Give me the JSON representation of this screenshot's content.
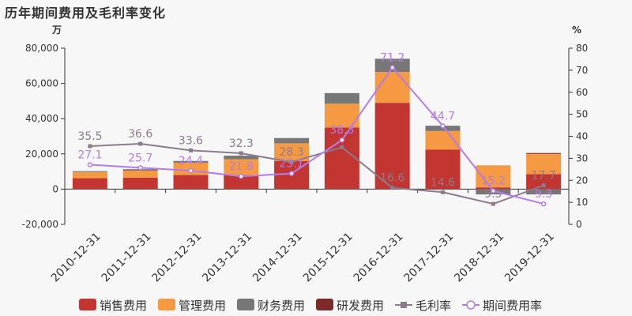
{
  "title": "历年期间费用及毛利率变化",
  "units": {
    "left": "万",
    "right": "%"
  },
  "chart_data": {
    "type": "bar",
    "stacked": true,
    "categories": [
      "2010-12-31",
      "2011-12-31",
      "2012-12-31",
      "2013-12-31",
      "2014-12-31",
      "2015-12-31",
      "2016-12-31",
      "2017-12-31",
      "2018-12-31",
      "2019-12-31"
    ],
    "left_axis": {
      "min": -20000,
      "max": 80000,
      "ticks": [
        -20000,
        0,
        20000,
        40000,
        60000,
        80000
      ],
      "tick_labels": [
        "-20,000",
        "0",
        "20,000",
        "40,000",
        "60,000",
        "80,000"
      ]
    },
    "right_axis": {
      "min": 0,
      "max": 80,
      "ticks": [
        0,
        10,
        20,
        30,
        40,
        50,
        60,
        70,
        80
      ]
    },
    "bar_series": [
      {
        "name": "销售费用",
        "color": "#c23531",
        "values": [
          6200,
          6500,
          8000,
          8000,
          16000,
          35000,
          49000,
          22500,
          1000,
          8500
        ]
      },
      {
        "name": "管理费用",
        "color": "#f59a42",
        "values": [
          3500,
          4000,
          7000,
          9000,
          10000,
          13500,
          17500,
          10500,
          12500,
          11500
        ]
      },
      {
        "name": "财务费用",
        "color": "#777777",
        "values": [
          500,
          800,
          1000,
          2000,
          3000,
          6000,
          7500,
          3000,
          -3000,
          -3000
        ]
      },
      {
        "name": "研发费用",
        "color": "#7d2a2a",
        "values": [
          0,
          0,
          0,
          0,
          0,
          0,
          0,
          0,
          0,
          500
        ]
      }
    ],
    "line_series": [
      {
        "name": "毛利率",
        "color": "#8c7b8c",
        "marker": "square",
        "values": [
          35.5,
          36.6,
          33.6,
          32.3,
          28.3,
          35.0,
          16.6,
          14.6,
          9.3,
          17.7
        ],
        "labels": [
          "35.5",
          "36.6",
          "33.6",
          "32.3",
          "28.3",
          "",
          "16.6",
          "14.6",
          "9.3",
          "17.7"
        ]
      },
      {
        "name": "期间费用率",
        "color": "#b57be6",
        "marker": "circle",
        "values": [
          27.1,
          25.7,
          24.4,
          21.8,
          23.1,
          38.3,
          71.2,
          44.7,
          15.2,
          9.3
        ],
        "labels": [
          "27.1",
          "25.7",
          "24.4",
          "21.8",
          "23.1",
          "38.3",
          "71.2",
          "44.7",
          "15.2",
          "9.3"
        ]
      }
    ],
    "legend": {
      "position": "bottom"
    },
    "grid": false
  }
}
